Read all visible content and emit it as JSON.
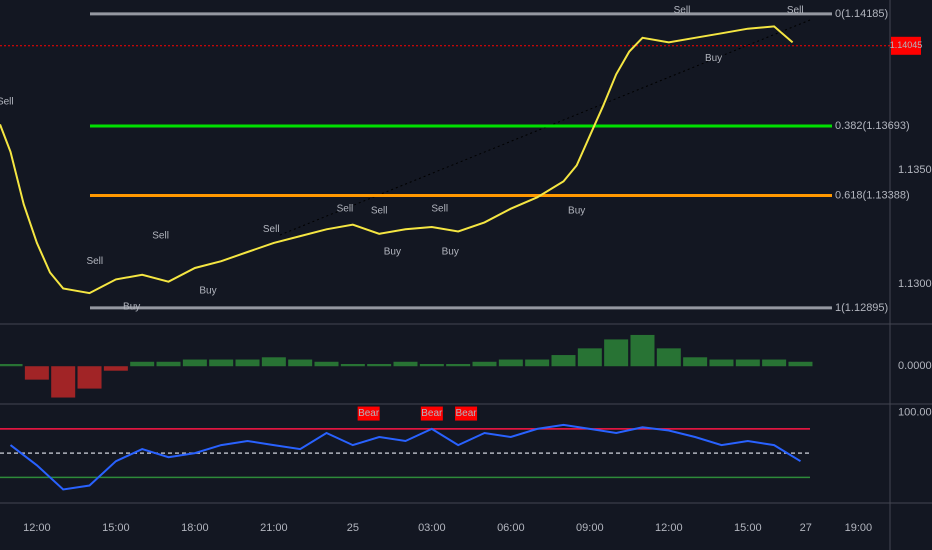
{
  "chart_data": [
    {
      "type": "line",
      "x": [
        -1.4,
        -1,
        -0.5,
        0,
        0.5,
        1,
        1.5,
        2,
        2.5,
        3,
        4,
        5,
        6,
        7,
        8,
        9,
        10,
        11,
        12,
        13,
        14,
        15,
        16,
        17,
        18,
        19,
        20,
        20.5,
        21,
        21.5,
        22,
        22.5,
        23,
        24,
        25,
        26,
        27,
        28,
        28.7
      ],
      "values": [
        1.137,
        1.1358,
        1.1335,
        1.1318,
        1.1305,
        1.1298,
        1.1297,
        1.1296,
        1.1299,
        1.1302,
        1.1304,
        1.1301,
        1.1307,
        1.131,
        1.1314,
        1.1318,
        1.1321,
        1.1324,
        1.1326,
        1.1322,
        1.1324,
        1.1325,
        1.1323,
        1.1327,
        1.1333,
        1.1338,
        1.1345,
        1.1352,
        1.1365,
        1.1378,
        1.1392,
        1.1402,
        1.1408,
        1.1406,
        1.1408,
        1.141,
        1.1412,
        1.1413,
        1.1406
      ],
      "color": "#f5e642",
      "xlim": [
        -1.4,
        32.4
      ],
      "ylim": [
        1.12833,
        1.14246
      ],
      "yticks": [
        {
          "value": 1.13,
          "label": "1.13000"
        },
        {
          "value": 1.135,
          "label": "1.13500"
        }
      ],
      "fib_levels": [
        {
          "label": "0(1.14185)",
          "value": 1.14185,
          "color": "#9598a1"
        },
        {
          "label": "0.382(1.13693)",
          "value": 1.13693,
          "color": "#00e000"
        },
        {
          "label": "0.618(1.13388)",
          "value": 1.13388,
          "color": "#ff9800"
        },
        {
          "label": "1(1.12895)",
          "value": 1.12895,
          "color": "#9598a1"
        }
      ],
      "last_price": {
        "value": 1.14045,
        "label": "1.14045",
        "color": "#ff0000"
      },
      "annotations": [
        {
          "text": "Sell",
          "x": -1.2,
          "y": 1.138,
          "color": "#ff9800"
        },
        {
          "text": "Sell",
          "x": 2.2,
          "y": 1.131,
          "color": "#ff9800"
        },
        {
          "text": "Buy",
          "x": 3.6,
          "y": 1.129,
          "color": "#4caf50"
        },
        {
          "text": "Sell",
          "x": 4.7,
          "y": 1.1321,
          "color": "#ff9800"
        },
        {
          "text": "Buy",
          "x": 6.5,
          "y": 1.1297,
          "color": "#4caf50"
        },
        {
          "text": "Sell",
          "x": 8.9,
          "y": 1.1324,
          "color": "#ff9800"
        },
        {
          "text": "Sell",
          "x": 11.7,
          "y": 1.1333,
          "color": "#ff9800"
        },
        {
          "text": "Buy",
          "x": 13.5,
          "y": 1.1314,
          "color": "#4caf50"
        },
        {
          "text": "Sell",
          "x": 13,
          "y": 1.1332,
          "color": "#ff9800"
        },
        {
          "text": "Sell",
          "x": 15.3,
          "y": 1.1333,
          "color": "#ff9800"
        },
        {
          "text": "Buy",
          "x": 15.7,
          "y": 1.1314,
          "color": "#4caf50"
        },
        {
          "text": "Buy",
          "x": 20.5,
          "y": 1.1332,
          "color": "#4caf50"
        },
        {
          "text": "Sell",
          "x": 24.5,
          "y": 1.142,
          "color": "#ff9800"
        },
        {
          "text": "Buy",
          "x": 25.7,
          "y": 1.1399,
          "color": "#4caf50"
        },
        {
          "text": "Sell",
          "x": 28.8,
          "y": 1.142,
          "color": "#ff9800"
        }
      ]
    },
    {
      "type": "bar",
      "x": [
        -1,
        0,
        1,
        2,
        3,
        4,
        5,
        6,
        7,
        8,
        9,
        10,
        11,
        12,
        13,
        14,
        15,
        16,
        17,
        18,
        19,
        20,
        21,
        22,
        23,
        24,
        25,
        26,
        27,
        28,
        29
      ],
      "values": [
        5e-05,
        -0.0003,
        -0.0007,
        -0.0005,
        -0.0001,
        0.0001,
        0.0001,
        0.00015,
        0.00015,
        0.00015,
        0.0002,
        0.00015,
        0.0001,
        5e-05,
        5e-05,
        0.0001,
        5e-05,
        5e-05,
        0.0001,
        0.00015,
        0.00015,
        0.00025,
        0.0004,
        0.0006,
        0.0007,
        0.0004,
        0.0002,
        0.00015,
        0.00015,
        0.00015,
        0.0001
      ],
      "up_color": "#2e8b3a",
      "down_color": "#c62828",
      "xlim": [
        -1.4,
        32.4
      ],
      "ylim": [
        -0.0008,
        0.0009
      ],
      "yticks": [
        {
          "value": 0,
          "label": "0.0000"
        }
      ]
    },
    {
      "type": "line",
      "x": [
        -1,
        0,
        1,
        2,
        3,
        4,
        5,
        6,
        7,
        8,
        9,
        10,
        11,
        12,
        13,
        14,
        15,
        16,
        17,
        18,
        19,
        20,
        21,
        22,
        23,
        24,
        25,
        26,
        27,
        28,
        29
      ],
      "values": [
        60,
        35,
        5,
        10,
        40,
        55,
        45,
        50,
        60,
        65,
        60,
        55,
        75,
        60,
        70,
        65,
        80,
        60,
        75,
        70,
        80,
        85,
        80,
        75,
        82,
        78,
        70,
        60,
        65,
        60,
        40
      ],
      "color": "#2962ff",
      "xlim": [
        -1.4,
        32.4
      ],
      "ylim": [
        -8,
        109.6
      ],
      "yticks": [
        {
          "value": 100,
          "label": "100.0000"
        }
      ],
      "hlines": [
        {
          "value": 80,
          "color": "#ff1744",
          "dash": false
        },
        {
          "value": 50,
          "color": "#b2b5be",
          "dash": true
        },
        {
          "value": 20,
          "color": "#2e8b3a",
          "dash": false
        }
      ],
      "annotations": [
        {
          "text": "Bear",
          "x": 12.6,
          "y": 99,
          "color": "#ff0000"
        },
        {
          "text": "Bear",
          "x": 15,
          "y": 99,
          "color": "#ff0000"
        },
        {
          "text": "Bear",
          "x": 16.3,
          "y": 99,
          "color": "#ff0000"
        }
      ],
      "xticks": [
        {
          "value": 0,
          "label": "12:00"
        },
        {
          "value": 3,
          "label": "15:00"
        },
        {
          "value": 6,
          "label": "18:00"
        },
        {
          "value": 9,
          "label": "21:00"
        },
        {
          "value": 12,
          "label": "25"
        },
        {
          "value": 15,
          "label": "03:00"
        },
        {
          "value": 18,
          "label": "06:00"
        },
        {
          "value": 21,
          "label": "09:00"
        },
        {
          "value": 24,
          "label": "12:00"
        },
        {
          "value": 27,
          "label": "15:00"
        },
        {
          "value": 29.2,
          "label": "27"
        },
        {
          "value": 31.2,
          "label": "19:00"
        }
      ]
    }
  ]
}
